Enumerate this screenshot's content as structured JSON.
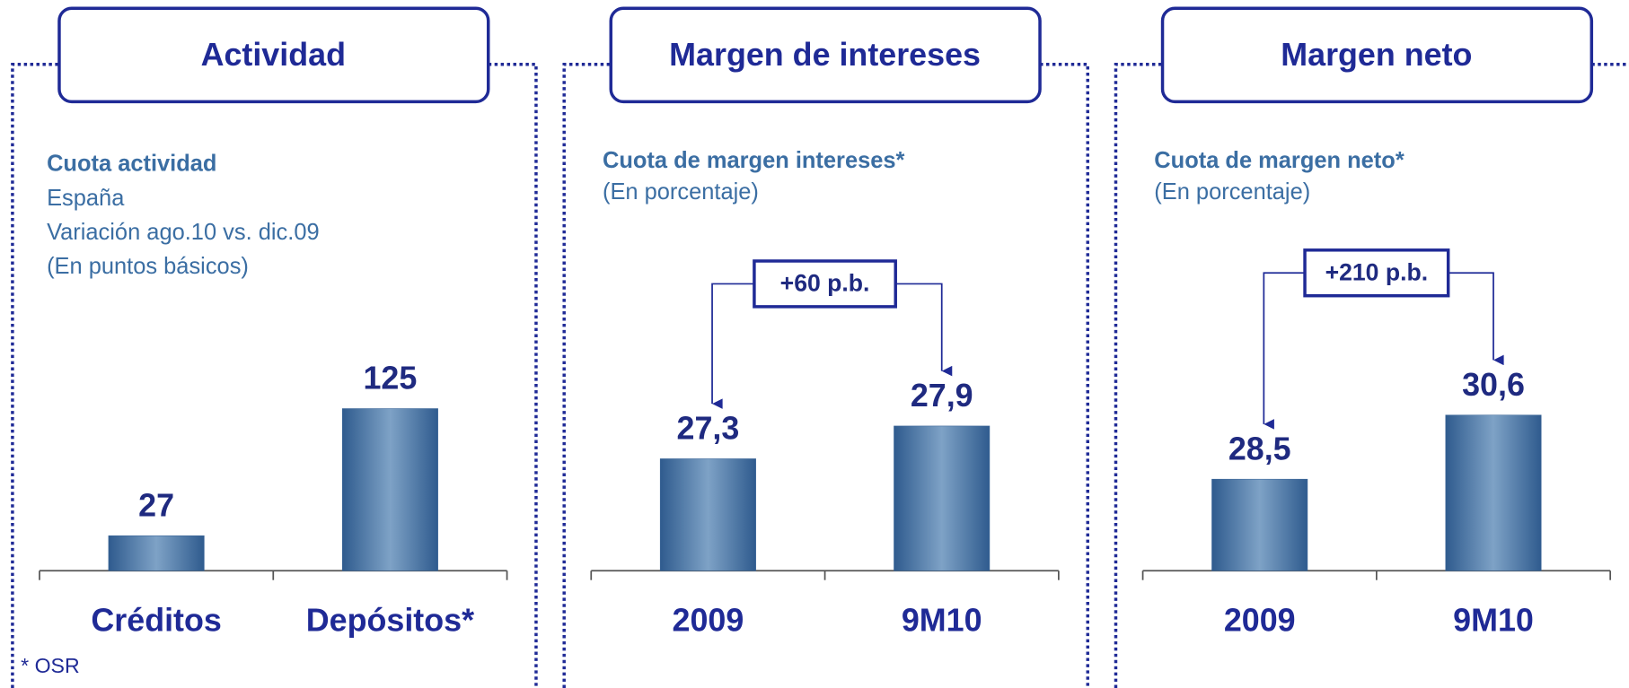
{
  "chart_data": [
    {
      "type": "bar",
      "title": "Actividad",
      "subtitle": "Cuota actividad",
      "description": [
        "España",
        "Variación ago.10 vs. dic.09",
        "(En puntos básicos)"
      ],
      "categories": [
        "Créditos",
        "Depósitos*"
      ],
      "values": [
        27,
        125
      ],
      "ylim": [
        0,
        200
      ],
      "color": "#3c6698",
      "footnote": "* OSR"
    },
    {
      "type": "bar",
      "title": "Margen de intereses",
      "subtitle": "Cuota de margen intereses*",
      "description": [
        "(En porcentaje)"
      ],
      "categories": [
        "2009",
        "9M10"
      ],
      "values": [
        27.3,
        27.9
      ],
      "value_labels": [
        "27,3",
        "27,9"
      ],
      "ylim": [
        25.25,
        30
      ],
      "color": "#3c6698",
      "annotation": "+60 p.b."
    },
    {
      "type": "bar",
      "title": "Margen neto",
      "subtitle": "Cuota de margen neto*",
      "description": [
        "(En porcentaje)"
      ],
      "categories": [
        "2009",
        "9M10"
      ],
      "values": [
        28.5,
        30.6
      ],
      "value_labels": [
        "28,5",
        "30,6"
      ],
      "ylim": [
        25.5,
        34
      ],
      "color": "#3c6698",
      "annotation": "+210 p.b."
    }
  ]
}
